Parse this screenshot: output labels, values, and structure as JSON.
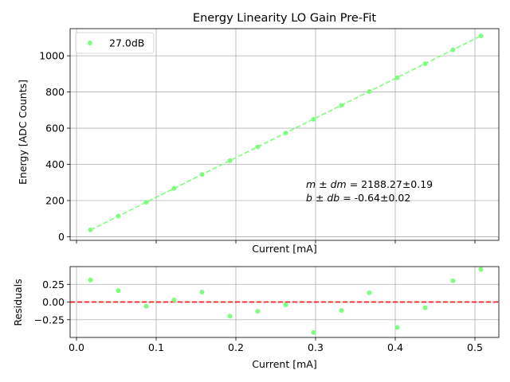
{
  "colors": {
    "series": "#7fff7f",
    "zero_line": "#ff0000",
    "grid": "#b0b0b0"
  },
  "chart_data": [
    {
      "type": "scatter",
      "title": "Energy Linearity LO Gain Pre-Fit",
      "xlabel": "Current [mA]",
      "ylabel": "Energy [ADC Counts]",
      "xlim": [
        -0.008,
        0.53
      ],
      "ylim": [
        -20,
        1150
      ],
      "grid": true,
      "legend": {
        "location": "upper-left",
        "entries": [
          "27.0dB"
        ]
      },
      "x_ticks": [],
      "y_ticks": [
        0,
        200,
        400,
        600,
        800,
        1000
      ],
      "series": [
        {
          "name": "27.0dB",
          "x": [
            0.0175,
            0.0525,
            0.0875,
            0.1225,
            0.1575,
            0.1925,
            0.2275,
            0.2625,
            0.2975,
            0.3325,
            0.3675,
            0.4025,
            0.4375,
            0.4725,
            0.5075
          ],
          "y": [
            37.97,
            114.38,
            190.85,
            267.33,
            343.78,
            420.13,
            496.56,
            573.18,
            649.34,
            726.07,
            802.58,
            878.39,
            955.81,
            1032.66,
            1109.87
          ]
        }
      ],
      "fit": {
        "slope": 2188.27,
        "intercept": -0.64,
        "style": "dashed"
      },
      "annotation": {
        "slope_label": "m ± dm",
        "slope_value": " = 2188.27±0.19",
        "intercept_label": "b ± db",
        "intercept_value": " = -0.64±0.02"
      }
    },
    {
      "type": "scatter",
      "title": "",
      "xlabel": "Current [mA]",
      "ylabel": "Residuals",
      "xlim": [
        -0.008,
        0.53
      ],
      "ylim": [
        -0.5,
        0.5
      ],
      "grid": true,
      "x_ticks": [
        0.0,
        0.1,
        0.2,
        0.3,
        0.4,
        0.5
      ],
      "x_tick_labels": [
        "0.0",
        "0.1",
        "0.2",
        "0.3",
        "0.4",
        "0.5"
      ],
      "y_ticks": [
        -0.25,
        0.0,
        0.25
      ],
      "y_tick_labels": [
        "−0.25",
        "0.00",
        "0.25"
      ],
      "zero_line": {
        "y": 0,
        "style": "dashed"
      },
      "series": [
        {
          "name": "residuals",
          "x": [
            0.0175,
            0.0525,
            0.0875,
            0.1225,
            0.1575,
            0.1925,
            0.2275,
            0.2625,
            0.2975,
            0.3325,
            0.3675,
            0.4025,
            0.4375,
            0.4725,
            0.5075
          ],
          "y": [
            0.31,
            0.16,
            -0.06,
            0.03,
            0.14,
            -0.2,
            -0.13,
            -0.04,
            -0.43,
            -0.12,
            0.13,
            -0.36,
            -0.08,
            0.3,
            0.46
          ]
        }
      ]
    }
  ]
}
